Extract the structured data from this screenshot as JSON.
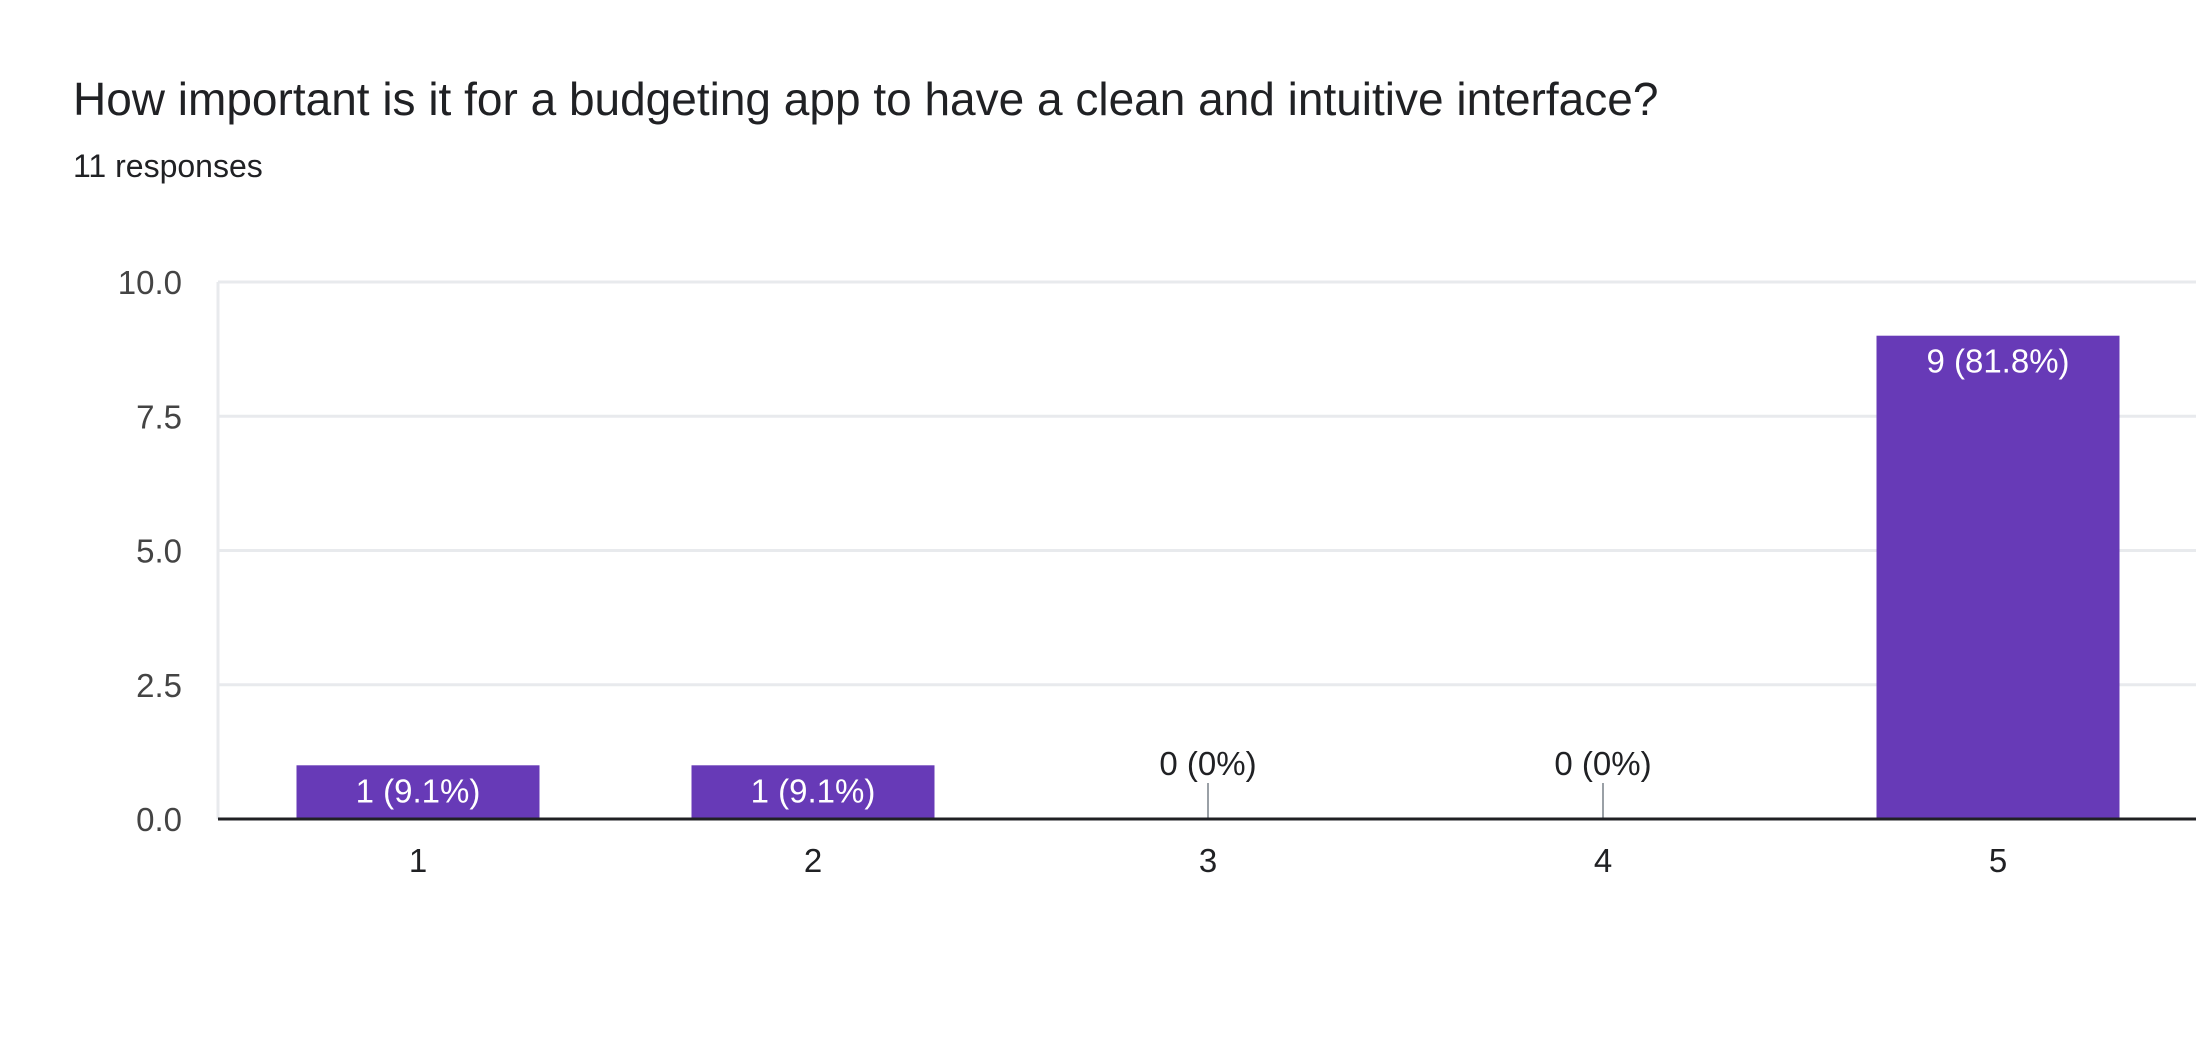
{
  "question": {
    "title": "How important is it for a budgeting app to have a clean and intuitive interface?",
    "responses": "11 responses"
  },
  "colors": {
    "bar": "#673ab7",
    "grid": "#e8eaed",
    "axis": "#202124",
    "tick_text": "#444444",
    "label_inside": "#ffffff",
    "label_outside": "#202124",
    "stub": "#9aa0a6"
  },
  "chart_data": {
    "type": "bar",
    "title": "How important is it for a budgeting app to have a clean and intuitive interface?",
    "subtitle": "11 responses",
    "xlabel": "",
    "ylabel": "",
    "categories": [
      "1",
      "2",
      "3",
      "4",
      "5"
    ],
    "values": [
      1,
      1,
      0,
      0,
      9
    ],
    "data_labels": [
      "1 (9.1%)",
      "1 (9.1%)",
      "0 (0%)",
      "0 (0%)",
      "9 (81.8%)"
    ],
    "ylim": [
      0,
      10
    ],
    "yticks": [
      "0.0",
      "2.5",
      "5.0",
      "7.5",
      "10.0"
    ],
    "grid": true,
    "legend": "none"
  }
}
